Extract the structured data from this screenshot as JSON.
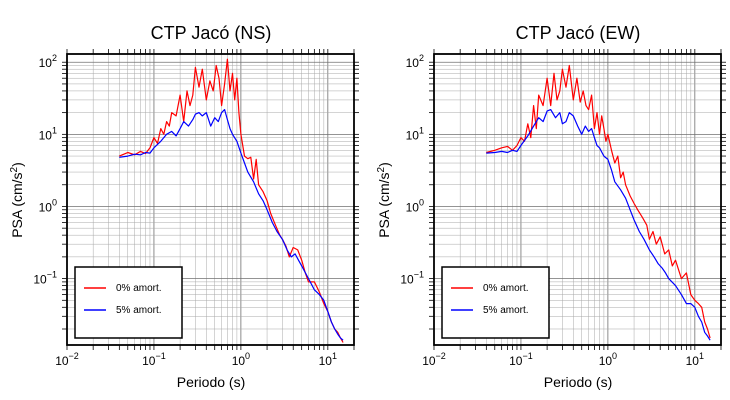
{
  "chart_data": [
    {
      "type": "line",
      "title": "CTP Jacó (NS)",
      "xlabel": "Periodo (s)",
      "ylabel_main": "PSA (cm/s",
      "ylabel_sup": "2",
      "ylabel_tail": ")",
      "xscale": "log",
      "yscale": "log",
      "xlim": [
        0.01,
        20
      ],
      "ylim": [
        0.012,
        130
      ],
      "grid": true,
      "legend_position": "bottom-left",
      "x_ticks": [
        {
          "value": 0.01,
          "base": "10",
          "exp": "−2"
        },
        {
          "value": 0.1,
          "base": "10",
          "exp": "−1"
        },
        {
          "value": 1,
          "base": "10",
          "exp": "0"
        },
        {
          "value": 10,
          "base": "10",
          "exp": "1"
        }
      ],
      "y_ticks": [
        {
          "value": 0.1,
          "base": "10",
          "exp": "−1"
        },
        {
          "value": 1,
          "base": "10",
          "exp": "0"
        },
        {
          "value": 10,
          "base": "10",
          "exp": "1"
        },
        {
          "value": 100,
          "base": "10",
          "exp": "2"
        }
      ],
      "series": [
        {
          "name": "0% amort.",
          "color": "#ff0000",
          "x": [
            0.04,
            0.05,
            0.06,
            0.07,
            0.08,
            0.09,
            0.1,
            0.11,
            0.12,
            0.13,
            0.14,
            0.15,
            0.16,
            0.18,
            0.2,
            0.22,
            0.24,
            0.26,
            0.28,
            0.3,
            0.33,
            0.36,
            0.4,
            0.44,
            0.48,
            0.52,
            0.56,
            0.6,
            0.65,
            0.7,
            0.75,
            0.8,
            0.85,
            0.9,
            0.95,
            1.0,
            1.1,
            1.2,
            1.3,
            1.4,
            1.5,
            1.6,
            1.8,
            2.0,
            2.2,
            2.5,
            2.8,
            3.0,
            3.3,
            3.6,
            4.0,
            4.5,
            5.0,
            5.5,
            6.0,
            7.0,
            8.0,
            9.0,
            10.0,
            11.0,
            12.0,
            13.0,
            14.0,
            15.0
          ],
          "y": [
            5.0,
            5.6,
            5.2,
            5.8,
            5.4,
            6.5,
            9.0,
            7.5,
            12.0,
            10.0,
            15.0,
            13.0,
            20.0,
            18.0,
            35.0,
            15.0,
            40.0,
            25.0,
            35.0,
            85.0,
            45.0,
            80.0,
            30.0,
            55.0,
            40.0,
            90.0,
            60.0,
            25.0,
            50.0,
            110.0,
            40.0,
            70.0,
            30.0,
            60.0,
            20.0,
            10.0,
            5.0,
            4.6,
            4.8,
            2.4,
            4.5,
            2.0,
            1.6,
            1.2,
            0.8,
            0.55,
            0.4,
            0.35,
            0.28,
            0.2,
            0.27,
            0.25,
            0.18,
            0.12,
            0.09,
            0.09,
            0.065,
            0.045,
            0.035,
            0.025,
            0.02,
            0.018,
            0.015,
            0.013
          ]
        },
        {
          "name": "5% amort.",
          "color": "#0000ff",
          "x": [
            0.04,
            0.05,
            0.06,
            0.07,
            0.08,
            0.09,
            0.1,
            0.12,
            0.14,
            0.16,
            0.18,
            0.2,
            0.22,
            0.25,
            0.28,
            0.3,
            0.33,
            0.36,
            0.4,
            0.45,
            0.5,
            0.55,
            0.6,
            0.65,
            0.7,
            0.75,
            0.8,
            0.9,
            1.0,
            1.1,
            1.2,
            1.4,
            1.6,
            1.8,
            2.0,
            2.3,
            2.6,
            3.0,
            3.4,
            3.8,
            4.2,
            4.6,
            5.0,
            6.0,
            7.0,
            8.0,
            9.0,
            10.0,
            11.0,
            12.0,
            13.0,
            14.0,
            15.0
          ],
          "y": [
            4.8,
            5.0,
            5.3,
            5.2,
            5.6,
            5.5,
            6.5,
            8.0,
            10.0,
            11.0,
            9.5,
            12.0,
            15.0,
            13.0,
            16.0,
            19.0,
            20.0,
            18.0,
            20.0,
            13.0,
            17.0,
            15.0,
            20.0,
            22.0,
            16.0,
            12.0,
            10.0,
            8.0,
            5.5,
            4.0,
            3.0,
            2.2,
            1.5,
            1.2,
            0.9,
            0.6,
            0.45,
            0.35,
            0.25,
            0.2,
            0.22,
            0.18,
            0.15,
            0.1,
            0.07,
            0.06,
            0.05,
            0.035,
            0.025,
            0.02,
            0.017,
            0.015,
            0.014
          ]
        }
      ]
    },
    {
      "type": "line",
      "title": "CTP Jacó (EW)",
      "xlabel": "Periodo (s)",
      "ylabel_main": "PSA (cm/s",
      "ylabel_sup": "2",
      "ylabel_tail": ")",
      "xscale": "log",
      "yscale": "log",
      "xlim": [
        0.01,
        20
      ],
      "ylim": [
        0.012,
        130
      ],
      "grid": true,
      "legend_position": "bottom-left",
      "x_ticks": [
        {
          "value": 0.01,
          "base": "10",
          "exp": "−2"
        },
        {
          "value": 0.1,
          "base": "10",
          "exp": "−1"
        },
        {
          "value": 1,
          "base": "10",
          "exp": "0"
        },
        {
          "value": 10,
          "base": "10",
          "exp": "1"
        }
      ],
      "y_ticks": [
        {
          "value": 0.1,
          "base": "10",
          "exp": "−1"
        },
        {
          "value": 1,
          "base": "10",
          "exp": "0"
        },
        {
          "value": 10,
          "base": "10",
          "exp": "1"
        },
        {
          "value": 100,
          "base": "10",
          "exp": "2"
        }
      ],
      "series": [
        {
          "name": "0% amort.",
          "color": "#ff0000",
          "x": [
            0.04,
            0.05,
            0.06,
            0.07,
            0.08,
            0.09,
            0.1,
            0.11,
            0.12,
            0.13,
            0.14,
            0.15,
            0.16,
            0.18,
            0.2,
            0.22,
            0.24,
            0.26,
            0.28,
            0.3,
            0.33,
            0.36,
            0.4,
            0.44,
            0.48,
            0.52,
            0.56,
            0.6,
            0.65,
            0.7,
            0.75,
            0.8,
            0.85,
            0.9,
            0.95,
            1.0,
            1.1,
            1.2,
            1.3,
            1.4,
            1.5,
            1.6,
            1.8,
            2.0,
            2.2,
            2.5,
            2.8,
            3.0,
            3.3,
            3.6,
            4.0,
            4.5,
            5.0,
            5.5,
            6.0,
            7.0,
            8.0,
            9.0,
            10.0,
            11.0,
            12.0,
            13.0,
            14.0,
            15.0
          ],
          "y": [
            5.6,
            6.0,
            6.5,
            6.8,
            6.0,
            7.0,
            9.0,
            8.0,
            14.0,
            9.0,
            25.0,
            12.0,
            35.0,
            25.0,
            60.0,
            25.0,
            70.0,
            30.0,
            40.0,
            80.0,
            45.0,
            90.0,
            30.0,
            60.0,
            28.0,
            40.0,
            25.0,
            22.0,
            35.0,
            12.0,
            20.0,
            10.0,
            18.0,
            12.0,
            8.0,
            10.0,
            6.0,
            4.0,
            5.0,
            2.5,
            3.0,
            2.0,
            1.4,
            1.1,
            0.9,
            0.7,
            0.55,
            0.35,
            0.45,
            0.3,
            0.38,
            0.22,
            0.25,
            0.15,
            0.18,
            0.1,
            0.12,
            0.06,
            0.05,
            0.045,
            0.04,
            0.025,
            0.02,
            0.015
          ]
        },
        {
          "name": "5% amort.",
          "color": "#0000ff",
          "x": [
            0.04,
            0.05,
            0.06,
            0.07,
            0.08,
            0.09,
            0.1,
            0.12,
            0.14,
            0.16,
            0.18,
            0.2,
            0.22,
            0.25,
            0.28,
            0.3,
            0.33,
            0.36,
            0.4,
            0.45,
            0.5,
            0.55,
            0.6,
            0.65,
            0.7,
            0.75,
            0.8,
            0.9,
            1.0,
            1.1,
            1.2,
            1.4,
            1.6,
            1.8,
            2.0,
            2.3,
            2.6,
            3.0,
            3.4,
            3.8,
            4.2,
            4.6,
            5.0,
            6.0,
            7.0,
            8.0,
            9.0,
            10.0,
            11.0,
            12.0,
            13.0,
            14.0,
            15.0
          ],
          "y": [
            5.5,
            5.6,
            5.8,
            5.6,
            6.0,
            5.8,
            7.0,
            9.5,
            13.0,
            17.0,
            15.0,
            21.0,
            22.0,
            17.0,
            20.0,
            14.0,
            15.0,
            20.0,
            18.0,
            13.0,
            10.0,
            13.0,
            11.0,
            12.0,
            9.0,
            7.0,
            6.5,
            5.0,
            4.5,
            3.2,
            2.2,
            1.7,
            1.3,
            0.9,
            0.65,
            0.45,
            0.35,
            0.25,
            0.2,
            0.16,
            0.14,
            0.12,
            0.1,
            0.08,
            0.06,
            0.045,
            0.045,
            0.04,
            0.03,
            0.025,
            0.018,
            0.016,
            0.014
          ]
        }
      ]
    }
  ]
}
